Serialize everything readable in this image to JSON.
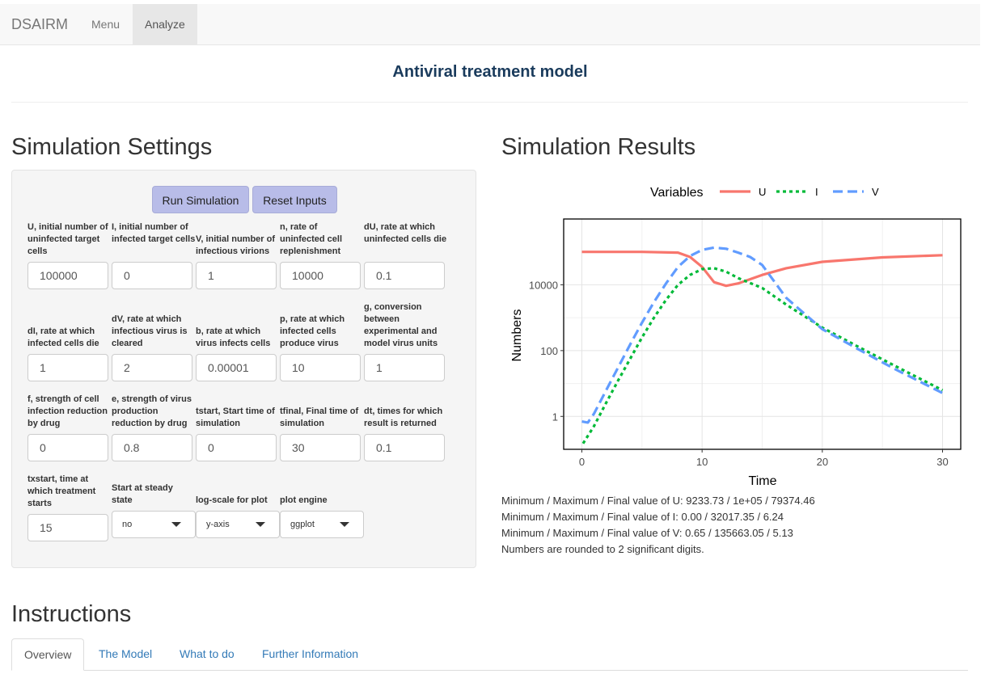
{
  "navbar": {
    "brand": "DSAIRM",
    "menu": "Menu",
    "analyze": "Analyze"
  },
  "page_title": "Antiviral treatment model",
  "settings": {
    "heading": "Simulation Settings",
    "run_button": "Run Simulation",
    "reset_button": "Reset Inputs",
    "fields": [
      {
        "label": "U, initial number of uninfected target cells",
        "value": "100000"
      },
      {
        "label": "I, initial number of infected target cells",
        "value": "0"
      },
      {
        "label": "V, initial number of infectious virions",
        "value": "1"
      },
      {
        "label": "n, rate of uninfected cell replenishment",
        "value": "10000"
      },
      {
        "label": "dU, rate at which uninfected cells die",
        "value": "0.1"
      },
      {
        "label": "dI, rate at which infected cells die",
        "value": "1"
      },
      {
        "label": "dV, rate at which infectious virus is cleared",
        "value": "2"
      },
      {
        "label": "b, rate at which virus infects cells",
        "value": "0.00001"
      },
      {
        "label": "p, rate at which infected cells produce virus",
        "value": "10"
      },
      {
        "label": "g, conversion between experimental and model virus units",
        "value": "1"
      },
      {
        "label": "f, strength of cell infection reduction by drug",
        "value": "0"
      },
      {
        "label": "e, strength of virus production reduction by drug",
        "value": "0.8"
      },
      {
        "label": "tstart, Start time of simulation",
        "value": "0"
      },
      {
        "label": "tfinal, Final time of simulation",
        "value": "30"
      },
      {
        "label": "dt, times for which result is returned",
        "value": "0.1"
      },
      {
        "label": "txstart, time at which treatment starts",
        "value": "15"
      }
    ],
    "selects": [
      {
        "label": "Start at steady state",
        "value": "no"
      },
      {
        "label": "log-scale for plot",
        "value": "y-axis"
      },
      {
        "label": "plot engine",
        "value": "ggplot"
      }
    ]
  },
  "results": {
    "heading": "Simulation Results",
    "stats": [
      "Minimum / Maximum / Final value of U: 9233.73 / 1e+05 / 79374.46",
      "Minimum / Maximum / Final value of I: 0.00 / 32017.35 / 6.24",
      "Minimum / Maximum / Final value of V: 0.65 / 135663.05 / 5.13",
      "Numbers are rounded to 2 significant digits."
    ]
  },
  "chart_data": {
    "type": "line",
    "xlabel": "Time",
    "ylabel": "Numbers",
    "legend_title": "Variables",
    "legend_position": "top",
    "xlim": [
      0,
      30
    ],
    "ylim": [
      0.1,
      1000000
    ],
    "y_scale": "log",
    "xticks": [
      0,
      10,
      20,
      30
    ],
    "yticks": [
      1,
      100,
      10000
    ],
    "ytick_labels": [
      "1",
      "100",
      "10000"
    ],
    "grid": true,
    "series": [
      {
        "name": "U",
        "color": "#F8766D",
        "dash": "solid",
        "x": [
          0,
          5,
          8,
          9,
          10,
          11,
          12,
          13,
          15,
          17,
          20,
          25,
          30
        ],
        "y": [
          100000,
          100000,
          95000,
          70000,
          35000,
          12000,
          9300,
          11000,
          20000,
          32000,
          50000,
          68000,
          79374
        ]
      },
      {
        "name": "I",
        "color": "#00BA38",
        "dash": "dotted",
        "x": [
          0.1,
          1,
          2,
          3,
          4,
          5,
          6,
          7,
          8,
          9,
          10,
          11,
          12,
          13,
          15,
          17,
          20,
          23,
          26,
          30
        ],
        "y": [
          0.15,
          0.5,
          2.5,
          12,
          55,
          250,
          1000,
          3500,
          10000,
          20000,
          30000,
          32000,
          25000,
          16000,
          8000,
          2500,
          500,
          130,
          35,
          6.24
        ]
      },
      {
        "name": "V",
        "color": "#619CFF",
        "dash": "dashed",
        "x": [
          0,
          0.5,
          1,
          2,
          3,
          4,
          5,
          6,
          7,
          8,
          9,
          10,
          11,
          12,
          13,
          14,
          15,
          17,
          20,
          23,
          26,
          30
        ],
        "y": [
          0.7,
          0.65,
          1.2,
          6,
          30,
          150,
          700,
          3000,
          11000,
          35000,
          75000,
          115000,
          135000,
          125000,
          95000,
          70000,
          40000,
          4000,
          450,
          110,
          28,
          5.13
        ]
      }
    ]
  },
  "instructions": {
    "heading": "Instructions",
    "tabs": [
      "Overview",
      "The Model",
      "What to do",
      "Further Information"
    ]
  }
}
